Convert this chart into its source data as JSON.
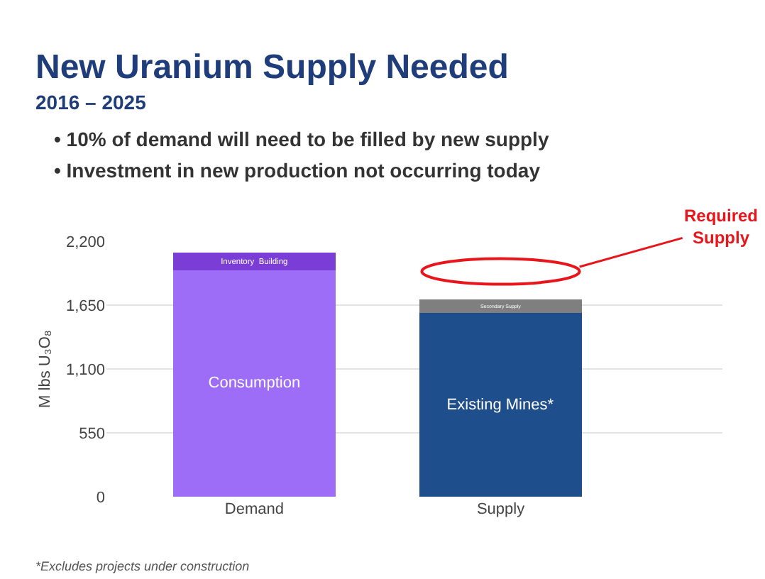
{
  "chart_data": {
    "type": "bar",
    "title": "New Uranium Supply Needed",
    "subtitle": "2016 – 2025",
    "ylabel": "M lbs U₃O₈",
    "categories": [
      "Demand",
      "Supply"
    ],
    "stacked": true,
    "series": [
      {
        "name": "Consumption",
        "color": "#9d6df7",
        "values": [
          1950,
          null
        ]
      },
      {
        "name": "Inventory  Building",
        "color": "#7a3ed6",
        "values": [
          150,
          null
        ]
      },
      {
        "name": "Existing Mines*",
        "color": "#1f4e8c",
        "values": [
          null,
          1580
        ]
      },
      {
        "name": "Secondary Supply",
        "color": "#7f7f7f",
        "values": [
          null,
          120
        ]
      }
    ],
    "ylim": [
      0,
      2200
    ],
    "yticks": [
      0,
      {
        "value": 550,
        "label": "550"
      },
      {
        "value": 1100,
        "label": "1,100"
      },
      {
        "value": 1650,
        "label": "1,650"
      },
      {
        "value": 2200,
        "label": "2,200"
      }
    ],
    "grid": "y",
    "annotations": [
      "• 10% of demand will need to be filled by new supply",
      "• Investment in new production not occurring today",
      "Required Supply",
      "*Excludes projects under construction"
    ]
  }
}
